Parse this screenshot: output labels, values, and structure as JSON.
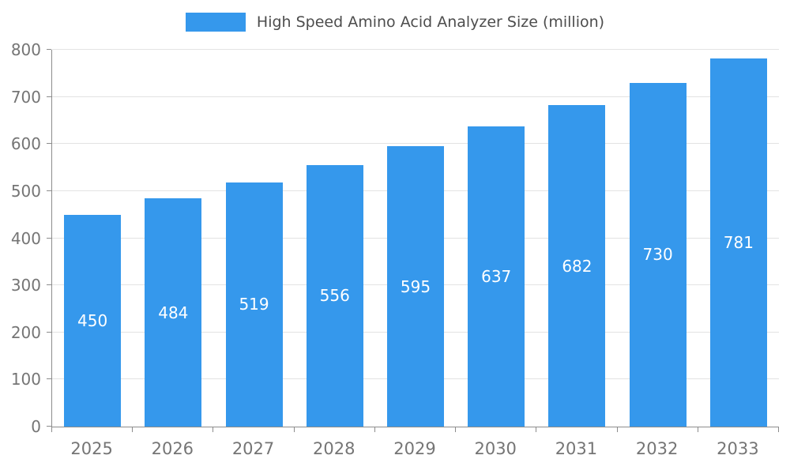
{
  "chart_data": {
    "type": "bar",
    "title": "High Speed Amino Acid Analyzer Size (million)",
    "categories": [
      "2025",
      "2026",
      "2027",
      "2028",
      "2029",
      "2030",
      "2031",
      "2032",
      "2033"
    ],
    "values": [
      450,
      484,
      519,
      556,
      595,
      637,
      682,
      730,
      781
    ],
    "xlabel": "",
    "ylabel": "",
    "ylim": [
      0,
      800
    ],
    "yticks": [
      0,
      100,
      200,
      300,
      400,
      500,
      600,
      700,
      800
    ],
    "grid": true,
    "legend_position": "top",
    "bar_color": "#3598ec",
    "value_label_color": "#ffffff",
    "axis_color": "#8c8c8c",
    "grid_color": "#e3e3e3",
    "tick_label_color": "#757575"
  }
}
